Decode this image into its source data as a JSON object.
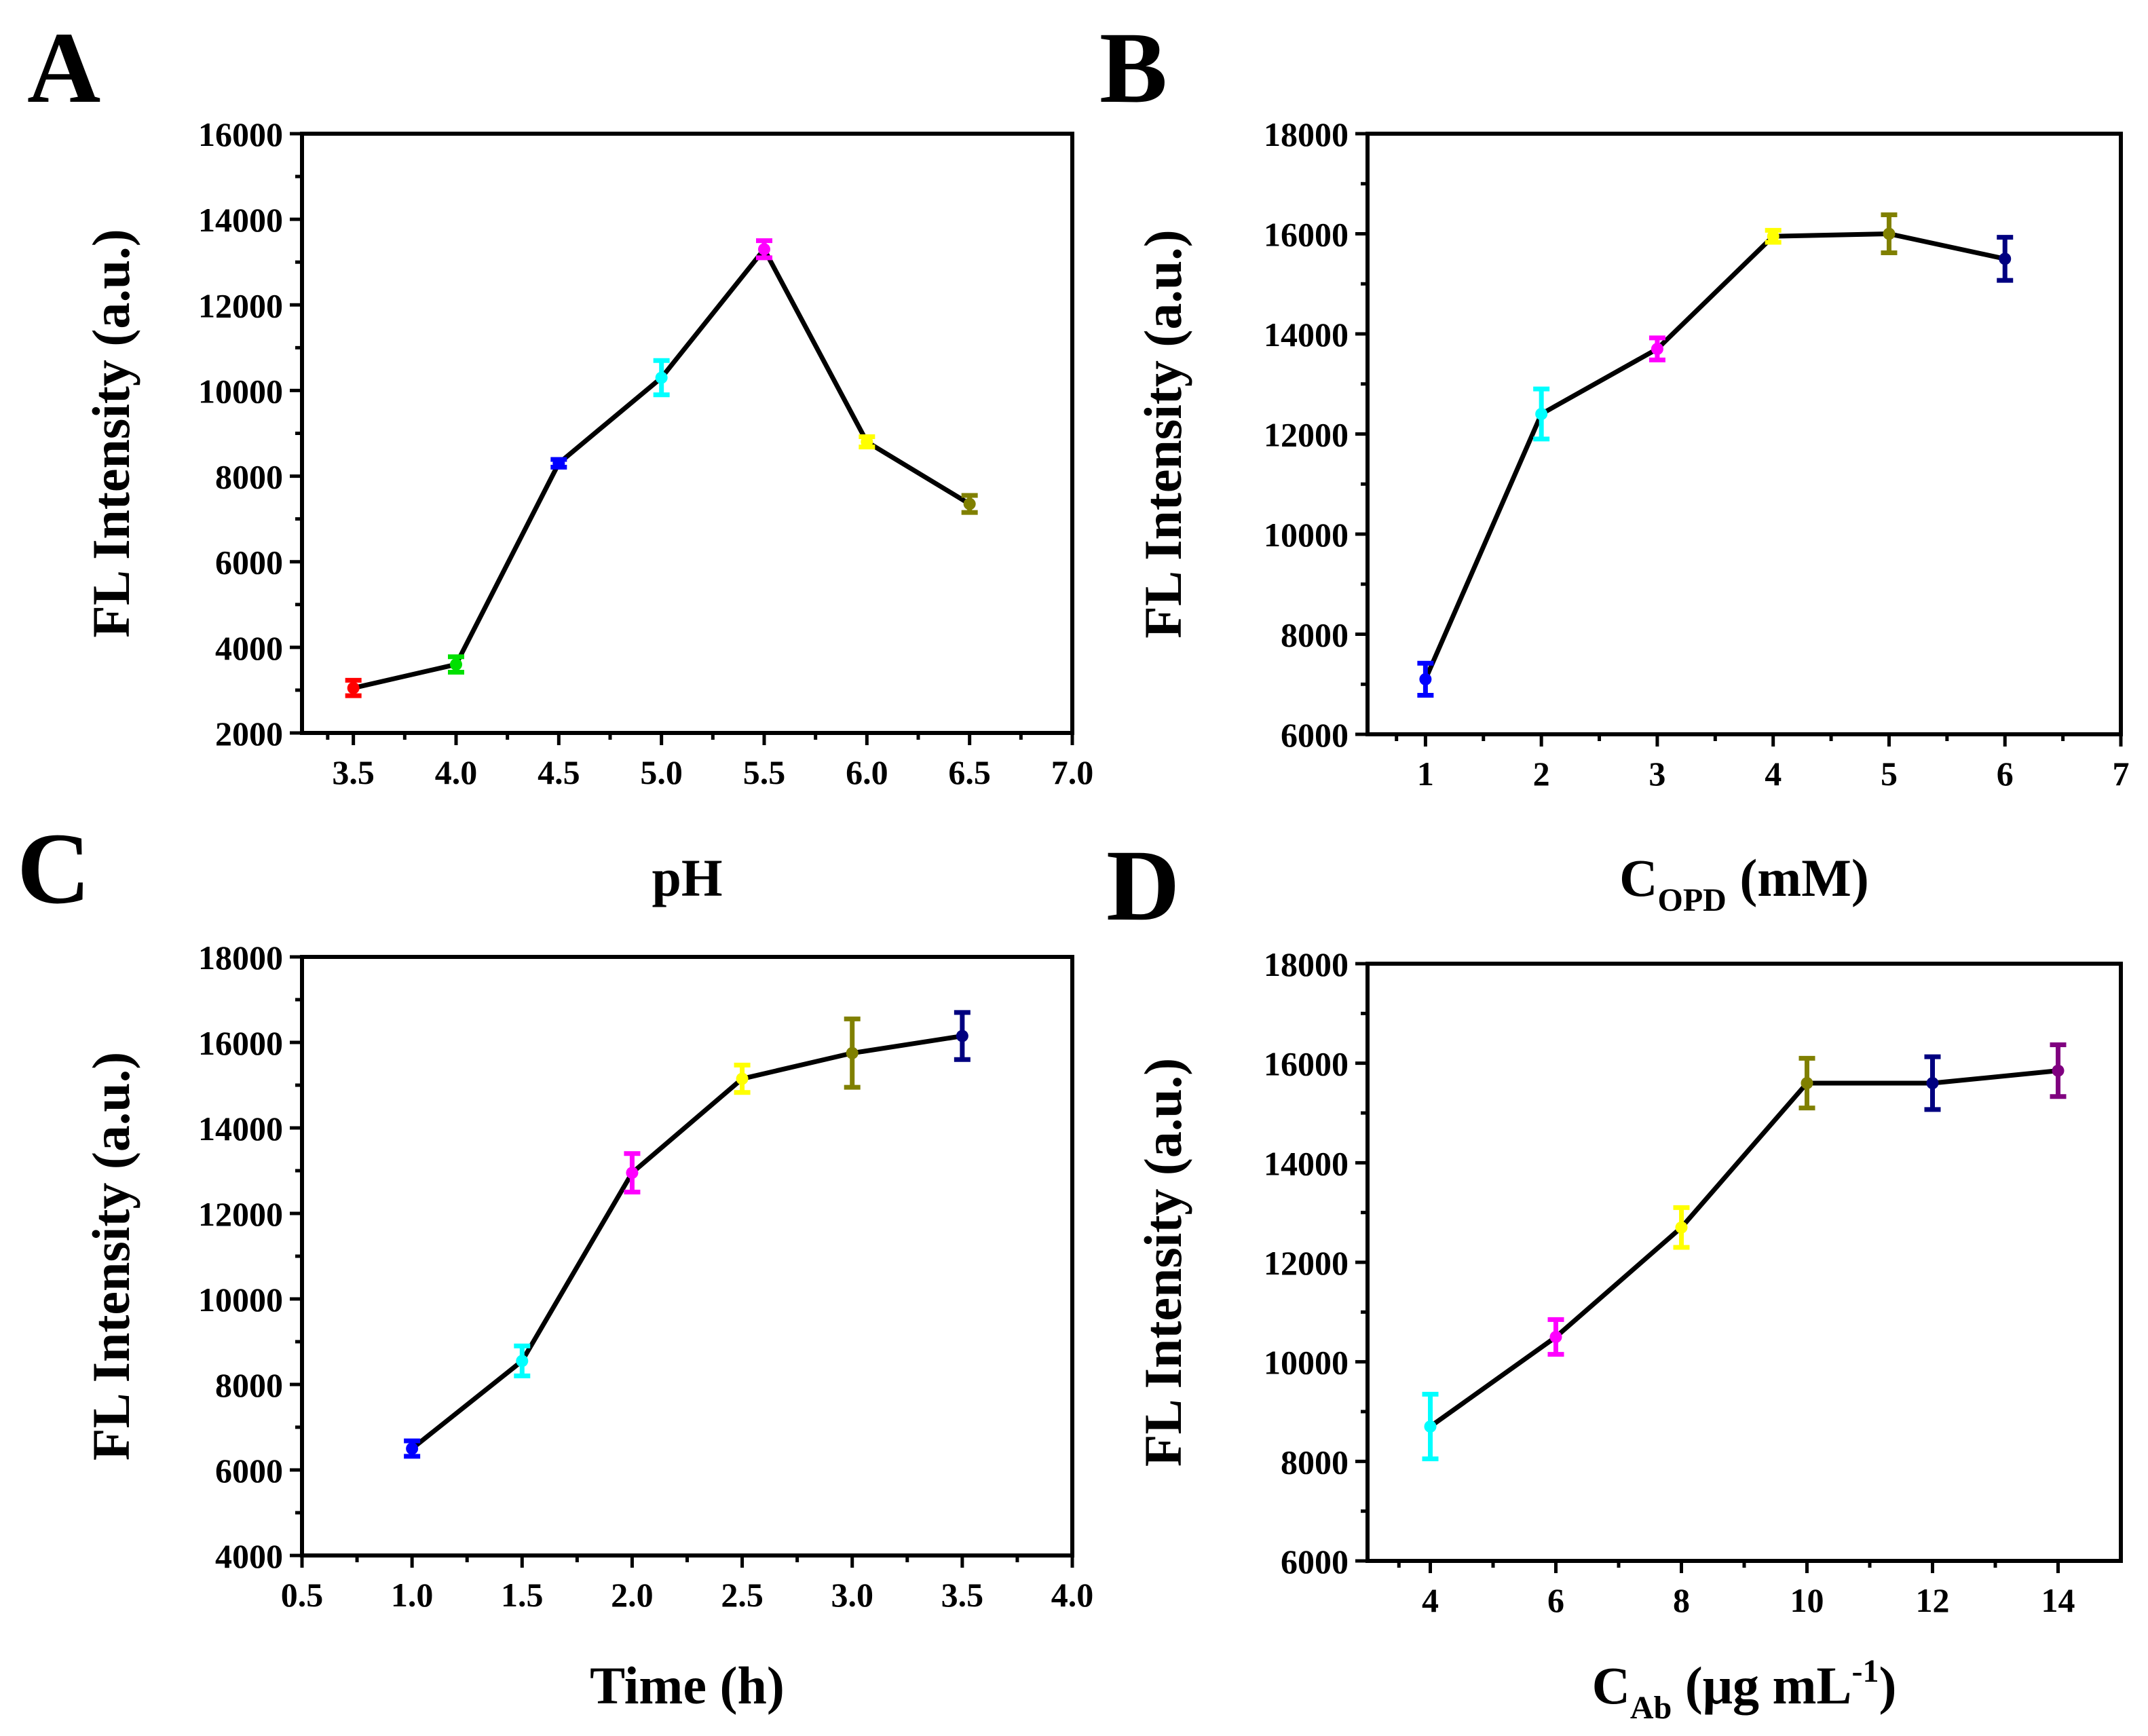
{
  "chart_data": [
    {
      "type": "line",
      "panel": "A",
      "xlabel": "pH",
      "ylabel": "FL Intensity (a.u.)",
      "xlim": [
        3.25,
        7.0
      ],
      "ylim": [
        2000,
        16000
      ],
      "xticks": [
        3.5,
        4.0,
        4.5,
        5.0,
        5.5,
        6.0,
        6.5,
        7.0
      ],
      "xtick_labels": [
        "3.5",
        "4.0",
        "4.5",
        "5.0",
        "5.5",
        "6.0",
        "6.5",
        "7.0"
      ],
      "yticks": [
        2000,
        4000,
        6000,
        8000,
        10000,
        12000,
        14000,
        16000
      ],
      "ytick_labels": [
        "2000",
        "4000",
        "6000",
        "8000",
        "10000",
        "12000",
        "14000",
        "16000"
      ],
      "points": [
        {
          "x": 3.5,
          "y": 3050,
          "err": 180,
          "color": "#ff0000"
        },
        {
          "x": 4.0,
          "y": 3600,
          "err": 180,
          "color": "#00e000"
        },
        {
          "x": 4.5,
          "y": 8300,
          "err": 90,
          "color": "#0000ff"
        },
        {
          "x": 5.0,
          "y": 10300,
          "err": 400,
          "color": "#00ffff"
        },
        {
          "x": 5.5,
          "y": 13300,
          "err": 200,
          "color": "#ff00ff"
        },
        {
          "x": 6.0,
          "y": 8800,
          "err": 120,
          "color": "#ffff00"
        },
        {
          "x": 6.5,
          "y": 7350,
          "err": 200,
          "color": "#808000"
        }
      ]
    },
    {
      "type": "line",
      "panel": "B",
      "xlabel": "C",
      "xlabel_sub": "OPD",
      "xlabel_rest": " (mM)",
      "ylabel": "FL Intensity (a.u.)",
      "xlim": [
        0.5,
        7
      ],
      "ylim": [
        6000,
        18000
      ],
      "xticks": [
        1,
        2,
        3,
        4,
        5,
        6,
        7
      ],
      "xtick_labels": [
        "1",
        "2",
        "3",
        "4",
        "5",
        "6",
        "7"
      ],
      "yticks": [
        6000,
        8000,
        10000,
        12000,
        14000,
        16000,
        18000
      ],
      "ytick_labels": [
        "6000",
        "8000",
        "10000",
        "12000",
        "14000",
        "16000",
        "18000"
      ],
      "points": [
        {
          "x": 1,
          "y": 7100,
          "err": 320,
          "color": "#0000ff"
        },
        {
          "x": 2,
          "y": 12400,
          "err": 500,
          "color": "#00ffff"
        },
        {
          "x": 3,
          "y": 13700,
          "err": 220,
          "color": "#ff00ff"
        },
        {
          "x": 4,
          "y": 15950,
          "err": 120,
          "color": "#ffff00"
        },
        {
          "x": 5,
          "y": 16000,
          "err": 380,
          "color": "#808000"
        },
        {
          "x": 6,
          "y": 15500,
          "err": 430,
          "color": "#000080"
        }
      ]
    },
    {
      "type": "line",
      "panel": "C",
      "xlabel": "Time (h)",
      "ylabel": "FL Intensity (a.u.)",
      "xlim": [
        0.5,
        4.0
      ],
      "ylim": [
        4000,
        18000
      ],
      "xticks": [
        0.5,
        1.0,
        1.5,
        2.0,
        2.5,
        3.0,
        3.5,
        4.0
      ],
      "xtick_labels": [
        "0.5",
        "1.0",
        "1.5",
        "2.0",
        "2.5",
        "3.0",
        "3.5",
        "4.0"
      ],
      "yticks": [
        4000,
        6000,
        8000,
        10000,
        12000,
        14000,
        16000,
        18000
      ],
      "ytick_labels": [
        "4000",
        "6000",
        "8000",
        "10000",
        "12000",
        "14000",
        "16000",
        "18000"
      ],
      "points": [
        {
          "x": 1.0,
          "y": 6500,
          "err": 180,
          "color": "#0000ff"
        },
        {
          "x": 1.5,
          "y": 8550,
          "err": 350,
          "color": "#00ffff"
        },
        {
          "x": 2.0,
          "y": 12950,
          "err": 450,
          "color": "#ff00ff"
        },
        {
          "x": 2.5,
          "y": 15150,
          "err": 320,
          "color": "#ffff00"
        },
        {
          "x": 3.0,
          "y": 15750,
          "err": 800,
          "color": "#808000"
        },
        {
          "x": 3.5,
          "y": 16150,
          "err": 550,
          "color": "#000080"
        }
      ]
    },
    {
      "type": "line",
      "panel": "D",
      "xlabel": "C",
      "xlabel_sub": "Ab",
      "xlabel_rest": " (μg mL",
      "xlabel_sup": "-1",
      "xlabel_end": ")",
      "ylabel": "FL Intensity (a.u.)",
      "xlim": [
        3,
        15
      ],
      "ylim": [
        6000,
        18000
      ],
      "xticks": [
        4,
        6,
        8,
        10,
        12,
        14
      ],
      "xtick_labels": [
        "4",
        "6",
        "8",
        "10",
        "12",
        "14"
      ],
      "yticks": [
        6000,
        8000,
        10000,
        12000,
        14000,
        16000,
        18000
      ],
      "ytick_labels": [
        "6000",
        "8000",
        "10000",
        "12000",
        "14000",
        "16000",
        "18000"
      ],
      "points": [
        {
          "x": 4,
          "y": 8700,
          "err": 650,
          "color": "#00ffff"
        },
        {
          "x": 6,
          "y": 10500,
          "err": 350,
          "color": "#ff00ff"
        },
        {
          "x": 8,
          "y": 12700,
          "err": 400,
          "color": "#ffff00"
        },
        {
          "x": 10,
          "y": 15600,
          "err": 500,
          "color": "#808000"
        },
        {
          "x": 12,
          "y": 15600,
          "err": 530,
          "color": "#000080"
        },
        {
          "x": 14,
          "y": 15850,
          "err": 520,
          "color": "#800080"
        }
      ]
    }
  ]
}
